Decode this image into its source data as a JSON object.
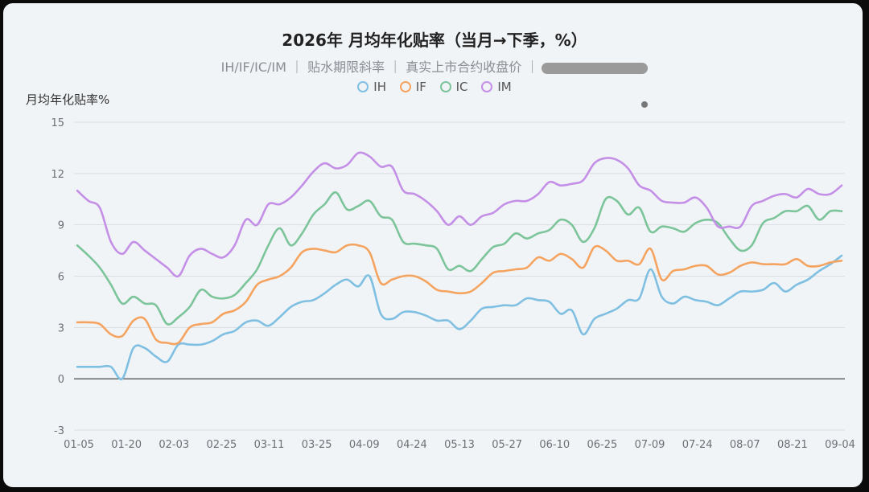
{
  "chart_data": {
    "type": "line",
    "title": "2026年 月均年化贴率（当月→下季，%）",
    "subtitle": "IH/IF/IC/IM ｜ 贴水期限斜率 ｜ 真实上市合约收盘价 ｜",
    "ylabel": "月均年化贴率%",
    "ylim": [
      -3,
      15
    ],
    "yticks": [
      -3,
      0,
      3,
      6,
      9,
      12,
      15
    ],
    "x_ticks": [
      "01-05",
      "01-20",
      "02-03",
      "02-25",
      "03-11",
      "03-25",
      "04-09",
      "04-24",
      "05-13",
      "05-27",
      "06-10",
      "06-25",
      "07-09",
      "07-24",
      "08-07",
      "08-21",
      "09-04"
    ],
    "grid": true,
    "legend_position": "top-center",
    "series": [
      {
        "name": "IH",
        "color": "#7fc0e2",
        "values": [
          0.7,
          0.7,
          0.7,
          0.7,
          0.0,
          1.8,
          1.8,
          1.3,
          1.0,
          2.0,
          2.0,
          2.0,
          2.2,
          2.6,
          2.8,
          3.3,
          3.4,
          3.1,
          3.6,
          4.2,
          4.5,
          4.6,
          5.0,
          5.5,
          5.8,
          5.4,
          6.0,
          3.8,
          3.5,
          3.9,
          3.9,
          3.7,
          3.4,
          3.4,
          2.9,
          3.4,
          4.1,
          4.2,
          4.3,
          4.3,
          4.7,
          4.6,
          4.5,
          3.8,
          4.0,
          2.6,
          3.5,
          3.8,
          4.1,
          4.6,
          4.7,
          6.4,
          4.8,
          4.4,
          4.8,
          4.6,
          4.5,
          4.3,
          4.7,
          5.1,
          5.1,
          5.2,
          5.6,
          5.1,
          5.5,
          5.8,
          6.3,
          6.7,
          7.2
        ]
      },
      {
        "name": "IF",
        "color": "#f4a460",
        "values": [
          3.3,
          3.3,
          3.2,
          2.6,
          2.5,
          3.4,
          3.5,
          2.3,
          2.1,
          2.1,
          3.0,
          3.2,
          3.3,
          3.8,
          4.0,
          4.5,
          5.5,
          5.8,
          6.0,
          6.5,
          7.4,
          7.6,
          7.5,
          7.4,
          7.8,
          7.8,
          7.4,
          5.6,
          5.8,
          6.0,
          6.0,
          5.7,
          5.2,
          5.1,
          5.0,
          5.1,
          5.6,
          6.2,
          6.3,
          6.4,
          6.5,
          7.1,
          6.9,
          7.3,
          7.0,
          6.5,
          7.7,
          7.5,
          6.9,
          6.9,
          6.7,
          7.6,
          5.8,
          6.3,
          6.4,
          6.6,
          6.6,
          6.1,
          6.2,
          6.6,
          6.8,
          6.7,
          6.7,
          6.7,
          7.0,
          6.6,
          6.6,
          6.8,
          6.9
        ]
      },
      {
        "name": "IC",
        "color": "#7cc49a",
        "values": [
          7.8,
          7.2,
          6.5,
          5.5,
          4.4,
          4.8,
          4.4,
          4.3,
          3.2,
          3.6,
          4.2,
          5.2,
          4.8,
          4.7,
          4.9,
          5.6,
          6.4,
          7.8,
          8.8,
          7.8,
          8.5,
          9.6,
          10.2,
          10.9,
          9.9,
          10.1,
          10.4,
          9.5,
          9.3,
          8.0,
          7.9,
          7.8,
          7.6,
          6.4,
          6.6,
          6.3,
          7.0,
          7.7,
          7.9,
          8.5,
          8.2,
          8.5,
          8.7,
          9.3,
          9.0,
          8.0,
          8.8,
          10.5,
          10.4,
          9.6,
          10.0,
          8.6,
          8.9,
          8.8,
          8.6,
          9.1,
          9.3,
          9.1,
          8.2,
          7.5,
          7.8,
          9.1,
          9.4,
          9.8,
          9.8,
          10.1,
          9.3,
          9.8,
          9.8
        ]
      },
      {
        "name": "IM",
        "color": "#c48fe6",
        "values": [
          11.0,
          10.4,
          10.0,
          8.0,
          7.3,
          8.0,
          7.5,
          7.0,
          6.5,
          6.0,
          7.2,
          7.6,
          7.3,
          7.1,
          7.8,
          9.3,
          9.0,
          10.2,
          10.2,
          10.6,
          11.3,
          12.1,
          12.6,
          12.3,
          12.5,
          13.2,
          13.0,
          12.4,
          12.4,
          11.0,
          10.8,
          10.4,
          9.8,
          9.0,
          9.5,
          9.0,
          9.5,
          9.7,
          10.2,
          10.4,
          10.4,
          10.8,
          11.5,
          11.3,
          11.4,
          11.6,
          12.6,
          12.9,
          12.8,
          12.3,
          11.3,
          11.0,
          10.4,
          10.3,
          10.3,
          10.6,
          10.0,
          8.9,
          8.9,
          8.9,
          10.1,
          10.4,
          10.7,
          10.8,
          10.6,
          11.1,
          10.8,
          10.8,
          11.3
        ]
      }
    ]
  }
}
